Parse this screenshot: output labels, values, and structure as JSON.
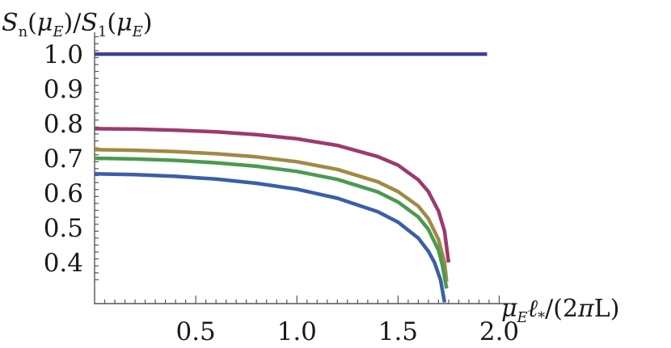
{
  "chart_data": {
    "type": "line",
    "title": "",
    "ylabel": "S_n(μ_E)/S_1(μ_E)",
    "xlabel": "μ_E ℓ_*/(2πL)",
    "xlim": [
      0,
      2.0
    ],
    "ylim": [
      0.28,
      1.05
    ],
    "x_ticks": [
      "0.5",
      "1.0",
      "1.5",
      "2.0"
    ],
    "y_ticks": [
      "0.4",
      "0.5",
      "0.6",
      "0.7",
      "0.8",
      "0.9",
      "1.0"
    ],
    "grid": false,
    "series": [
      {
        "color": "#3b3f97",
        "points": [
          [
            0,
            1.0
          ],
          [
            1.94,
            1.0
          ]
        ]
      },
      {
        "color": "#9b3a6f",
        "points": [
          [
            0,
            0.785
          ],
          [
            0.2,
            0.784
          ],
          [
            0.4,
            0.781
          ],
          [
            0.6,
            0.776
          ],
          [
            0.8,
            0.768
          ],
          [
            1.0,
            0.756
          ],
          [
            1.2,
            0.737
          ],
          [
            1.4,
            0.705
          ],
          [
            1.5,
            0.68
          ],
          [
            1.6,
            0.638
          ],
          [
            1.65,
            0.604
          ],
          [
            1.7,
            0.548
          ],
          [
            1.73,
            0.49
          ],
          [
            1.75,
            0.4
          ]
        ]
      },
      {
        "color": "#a08a44",
        "points": [
          [
            0,
            0.725
          ],
          [
            0.2,
            0.723
          ],
          [
            0.4,
            0.719
          ],
          [
            0.6,
            0.713
          ],
          [
            0.8,
            0.704
          ],
          [
            1.0,
            0.69
          ],
          [
            1.2,
            0.668
          ],
          [
            1.4,
            0.632
          ],
          [
            1.5,
            0.604
          ],
          [
            1.6,
            0.562
          ],
          [
            1.65,
            0.526
          ],
          [
            1.7,
            0.466
          ],
          [
            1.73,
            0.4
          ],
          [
            1.74,
            0.345
          ]
        ]
      },
      {
        "color": "#4a9a50",
        "points": [
          [
            0,
            0.7
          ],
          [
            0.2,
            0.698
          ],
          [
            0.4,
            0.694
          ],
          [
            0.6,
            0.687
          ],
          [
            0.8,
            0.677
          ],
          [
            1.0,
            0.662
          ],
          [
            1.2,
            0.639
          ],
          [
            1.4,
            0.603
          ],
          [
            1.5,
            0.574
          ],
          [
            1.6,
            0.531
          ],
          [
            1.65,
            0.495
          ],
          [
            1.7,
            0.435
          ],
          [
            1.72,
            0.39
          ],
          [
            1.74,
            0.325
          ]
        ]
      },
      {
        "color": "#3a5fa8",
        "points": [
          [
            0,
            0.655
          ],
          [
            0.2,
            0.653
          ],
          [
            0.4,
            0.648
          ],
          [
            0.6,
            0.64
          ],
          [
            0.8,
            0.628
          ],
          [
            1.0,
            0.611
          ],
          [
            1.2,
            0.585
          ],
          [
            1.4,
            0.546
          ],
          [
            1.5,
            0.516
          ],
          [
            1.6,
            0.47
          ],
          [
            1.65,
            0.432
          ],
          [
            1.68,
            0.4
          ],
          [
            1.71,
            0.35
          ],
          [
            1.73,
            0.285
          ]
        ]
      }
    ]
  }
}
